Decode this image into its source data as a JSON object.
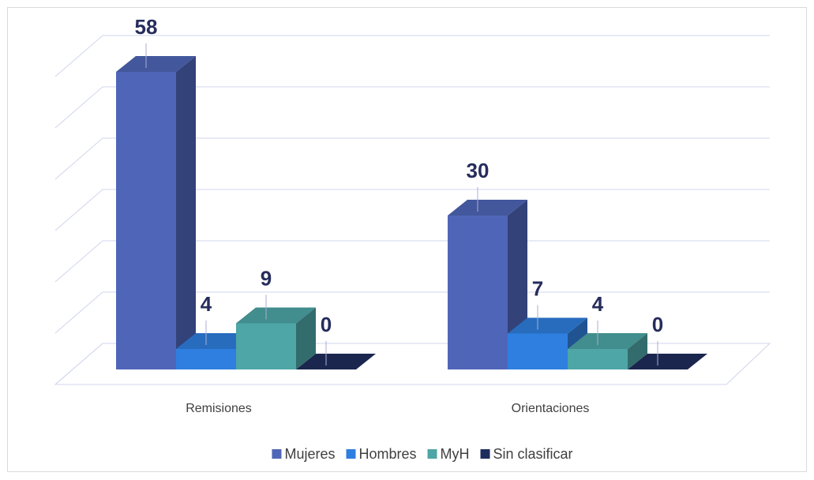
{
  "chart_data": {
    "type": "bar3d",
    "categories": [
      "Remisiones",
      "Orientaciones"
    ],
    "series": [
      {
        "name": "Mujeres",
        "color": "#4f66b8",
        "values": [
          58,
          30
        ]
      },
      {
        "name": "Hombres",
        "color": "#2f7fe0",
        "values": [
          4,
          7
        ]
      },
      {
        "name": "MyH",
        "color": "#4ea6a6",
        "values": [
          9,
          4
        ]
      },
      {
        "name": "Sin clasificar",
        "color": "#1f2d5c",
        "values": [
          0,
          0
        ]
      }
    ],
    "ylim": [
      0,
      60
    ],
    "yticks": [
      0,
      10,
      20,
      30,
      40,
      50,
      60
    ],
    "grid": true,
    "legend": "bottom"
  }
}
